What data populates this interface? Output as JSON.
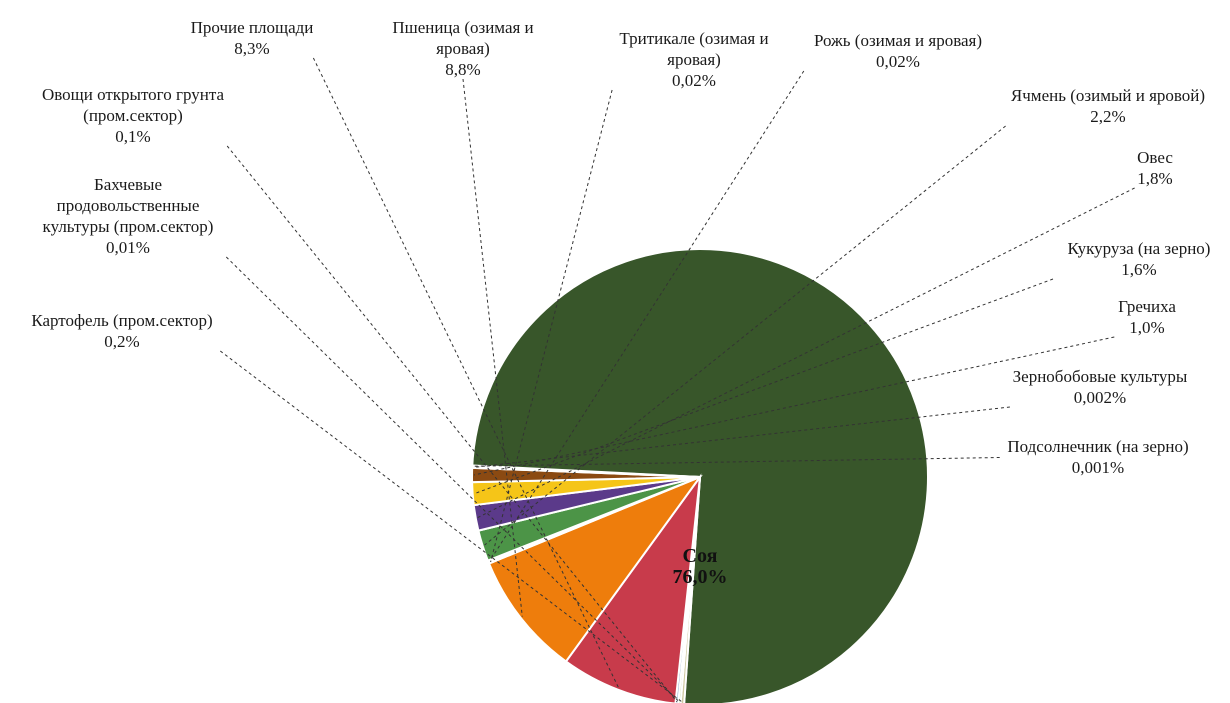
{
  "chart_data": {
    "type": "pie",
    "slices": [
      {
        "name": "Соя",
        "name_lines": [
          "Соя"
        ],
        "value": 76.0,
        "label": "76,0%",
        "color": "#38562a",
        "inside": true
      },
      {
        "name": "Картофель (пром.сектор)",
        "name_lines": [
          "Картофель (пром.сектор)"
        ],
        "value": 0.2,
        "label": "0,2%",
        "color": "#cfc9a2"
      },
      {
        "name": "Бахчевые продовольственные культуры (пром.сектор)",
        "name_lines": [
          "Бахчевые",
          "продовольственные",
          "культуры  (пром.сектор)"
        ],
        "value": 0.01,
        "label": "0,01%",
        "color": "#b9cd8a"
      },
      {
        "name": "Овощи открытого грунта (пром.сектор)",
        "name_lines": [
          "Овощи открытого грунта",
          "(пром.сектор)"
        ],
        "value": 0.1,
        "label": "0,1%",
        "color": "#9db7d2"
      },
      {
        "name": "Прочие площади",
        "name_lines": [
          "Прочие площади"
        ],
        "value": 8.3,
        "label": "8,3%",
        "color": "#c83b4b"
      },
      {
        "name": "Пшеница (озимая и яровая)",
        "name_lines": [
          "Пшеница (озимая и",
          "яровая)"
        ],
        "value": 8.8,
        "label": "8,8%",
        "color": "#ee7d0c"
      },
      {
        "name": "Тритикале (озимая и яровая)",
        "name_lines": [
          "Тритикале (озимая и",
          "яровая)"
        ],
        "value": 0.02,
        "label": "0,02%",
        "color": "#6fa0c8"
      },
      {
        "name": "Рожь (озимая и яровая)",
        "name_lines": [
          "Рожь (озимая и яровая)"
        ],
        "value": 0.02,
        "label": "0,02%",
        "color": "#8e5aa4"
      },
      {
        "name": "Ячмень (озимый и яровой)",
        "name_lines": [
          "Ячмень (озимый и яровой)"
        ],
        "value": 2.2,
        "label": "2,2%",
        "color": "#4c9447"
      },
      {
        "name": "Овес",
        "name_lines": [
          "Овес"
        ],
        "value": 1.8,
        "label": "1,8%",
        "color": "#5b3a8a"
      },
      {
        "name": "Кукуруза (на зерно)",
        "name_lines": [
          "Кукуруза  (на зерно)"
        ],
        "value": 1.6,
        "label": "1,6%",
        "color": "#f5c518"
      },
      {
        "name": "Гречиха",
        "name_lines": [
          "Гречиха"
        ],
        "value": 1.0,
        "label": "1,0%",
        "color": "#8b4a12"
      },
      {
        "name": "Зернобобовые культуры",
        "name_lines": [
          "Зернобобовые культуры"
        ],
        "value": 0.002,
        "label": "0,002%",
        "color": "#e8a33b"
      },
      {
        "name": "Подсолнечник (на зерно)",
        "name_lines": [
          "Подсолнечник (на зерно)"
        ],
        "value": 0.001,
        "label": "0,001%",
        "color": "#d9d25a"
      }
    ],
    "legend": "none",
    "label_style": "outside labels with dashed leader lines"
  }
}
